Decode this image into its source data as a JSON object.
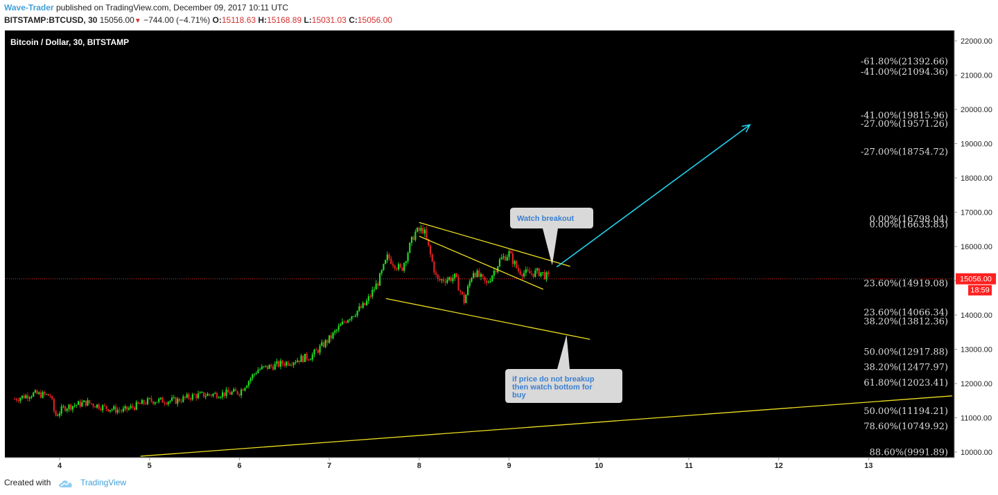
{
  "header": {
    "author": "Wave-Trader",
    "published": "published on TradingView.com, December 09, 2017 10:11 UTC",
    "symbol": "BITSTAMP:BTCUSD, 30",
    "price": "15056.00",
    "change": "−744.00 (−4.71%)",
    "open_label": "O:",
    "open": "15118.63",
    "high_label": "H:",
    "high": "15168.89",
    "low_label": "L:",
    "low": "15031.03",
    "close_label": "C:",
    "close": "15056.00"
  },
  "footer": {
    "created_with": "Created with",
    "brand": "TradingView"
  },
  "colors": {
    "background": "#000000",
    "up": "#22dd22",
    "down": "#dd2222",
    "trendline": "#f0e020",
    "arrow": "#22d3ee",
    "fib": "#dddddd",
    "price_badge": "#ff2020",
    "axis_text": "#222222"
  },
  "chart_data": {
    "type": "candlestick",
    "title": "Bitcoin / Dollar, 30, BITSTAMP",
    "ylim": [
      10000,
      22000
    ],
    "y_ticks": [
      "22000.00",
      "21000.00",
      "20000.00",
      "19000.00",
      "18000.00",
      "17000.00",
      "16000.00",
      "15000.00",
      "14000.00",
      "13000.00",
      "12000.00",
      "11000.00",
      "10000.00"
    ],
    "x_ticks": [
      "4",
      "5",
      "6",
      "7",
      "8",
      "9",
      "10",
      "11",
      "12",
      "13"
    ],
    "current_price": "15056.00",
    "countdown": "18:59",
    "close_path": [
      {
        "day": 3.5,
        "price": 11550
      },
      {
        "day": 3.7,
        "price": 11700
      },
      {
        "day": 3.9,
        "price": 11650
      },
      {
        "day": 3.95,
        "price": 11050
      },
      {
        "day": 4.05,
        "price": 11300
      },
      {
        "day": 4.3,
        "price": 11450
      },
      {
        "day": 4.5,
        "price": 11300
      },
      {
        "day": 4.7,
        "price": 11200
      },
      {
        "day": 5.0,
        "price": 11500
      },
      {
        "day": 5.3,
        "price": 11500
      },
      {
        "day": 5.5,
        "price": 11650
      },
      {
        "day": 5.8,
        "price": 11700
      },
      {
        "day": 6.0,
        "price": 11750
      },
      {
        "day": 6.2,
        "price": 12400
      },
      {
        "day": 6.5,
        "price": 12600
      },
      {
        "day": 6.8,
        "price": 12800
      },
      {
        "day": 7.0,
        "price": 13300
      },
      {
        "day": 7.2,
        "price": 13900
      },
      {
        "day": 7.4,
        "price": 14300
      },
      {
        "day": 7.55,
        "price": 15000
      },
      {
        "day": 7.65,
        "price": 15700
      },
      {
        "day": 7.8,
        "price": 15300
      },
      {
        "day": 7.95,
        "price": 16400
      },
      {
        "day": 8.05,
        "price": 16500
      },
      {
        "day": 8.2,
        "price": 15000
      },
      {
        "day": 8.4,
        "price": 15100
      },
      {
        "day": 8.5,
        "price": 14400
      },
      {
        "day": 8.6,
        "price": 15300
      },
      {
        "day": 8.75,
        "price": 14900
      },
      {
        "day": 8.9,
        "price": 15600
      },
      {
        "day": 9.0,
        "price": 15800
      },
      {
        "day": 9.1,
        "price": 15300
      },
      {
        "day": 9.2,
        "price": 15200
      },
      {
        "day": 9.35,
        "price": 15250
      },
      {
        "day": 9.45,
        "price": 15056
      }
    ],
    "fib_levels": [
      {
        "label": "-61.80%(21392.66)",
        "price": 21392.66
      },
      {
        "label": "-41.00%(21094.36)",
        "price": 21094.36
      },
      {
        "label": "-41.00%(19815.96)",
        "price": 19815.96
      },
      {
        "label": "-27.00%(19571.26)",
        "price": 19571.26
      },
      {
        "label": "-27.00%(18754.72)",
        "price": 18754.72
      },
      {
        "label": "0.00%(16798.04)",
        "price": 16798.04
      },
      {
        "label": "0.00%(16633.83)",
        "price": 16633.83
      },
      {
        "label": "23.60%(14919.08)",
        "price": 14919.08
      },
      {
        "label": "23.60%(14066.34)",
        "price": 14066.34
      },
      {
        "label": "38.20%(13812.36)",
        "price": 13812.36
      },
      {
        "label": "50.00%(12917.88)",
        "price": 12917.88
      },
      {
        "label": "38.20%(12477.97)",
        "price": 12477.97
      },
      {
        "label": "61.80%(12023.41)",
        "price": 12023.41
      },
      {
        "label": "50.00%(11194.21)",
        "price": 11194.21
      },
      {
        "label": "78.60%(10749.92)",
        "price": 10749.92
      },
      {
        "label": "88.60%(9991.89)",
        "price": 9991.89
      }
    ],
    "trendlines": [
      {
        "name": "upper-wedge",
        "from": {
          "day": 8.0,
          "price": 16700
        },
        "to": {
          "day": 9.68,
          "price": 15420
        }
      },
      {
        "name": "inner-wedge",
        "from": {
          "day": 8.0,
          "price": 16300
        },
        "to": {
          "day": 9.38,
          "price": 14750
        }
      },
      {
        "name": "lower-support",
        "from": {
          "day": 7.63,
          "price": 14480
        },
        "to": {
          "day": 9.9,
          "price": 13290
        }
      },
      {
        "name": "long-support",
        "from": {
          "day": 4.9,
          "price": 9880
        },
        "to": {
          "day": 13.93,
          "price": 11640
        }
      }
    ],
    "projection_arrow": {
      "from": {
        "day": 9.53,
        "price": 15400
      },
      "to": {
        "day": 11.68,
        "price": 19550
      }
    },
    "annotations": [
      {
        "text": "Watch breakout",
        "anchor": {
          "day": 9.48,
          "price": 15450
        }
      },
      {
        "text": "if price do not breakup then watch bottom for buy",
        "anchor": {
          "day": 9.64,
          "price": 13420
        }
      }
    ]
  }
}
